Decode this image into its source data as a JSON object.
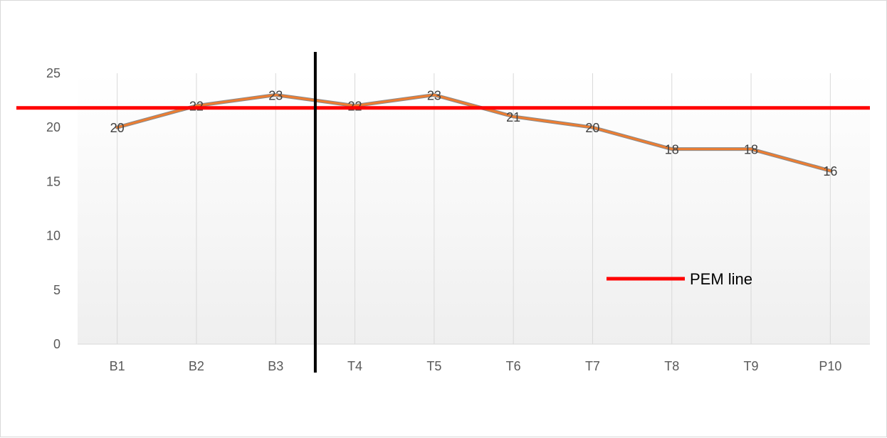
{
  "chart_data": {
    "type": "line",
    "categories": [
      "B1",
      "B2",
      "B3",
      "T4",
      "T5",
      "T6",
      "T7",
      "T8",
      "T9",
      "P10"
    ],
    "series": [
      {
        "values": [
          20,
          22,
          23,
          22,
          23,
          21,
          20,
          18,
          18,
          16
        ],
        "color": "#ED7D31"
      }
    ],
    "data_labels": [
      "20",
      "22",
      "23",
      "22",
      "23",
      "21",
      "20",
      "18",
      "18",
      "16"
    ],
    "ylim": [
      0,
      25
    ],
    "y_ticks": [
      0,
      5,
      10,
      15,
      20,
      25
    ],
    "y_tick_labels": [
      "0",
      "5",
      "10",
      "15",
      "20",
      "25"
    ],
    "reference_line": {
      "value": 21.8,
      "color": "#FF0000",
      "label": "PEM line"
    },
    "phase_divider": {
      "between": [
        "B3",
        "T4"
      ],
      "color": "#000000"
    },
    "vertical_gridlines": true,
    "legend": {
      "position": "right",
      "entries": [
        "PEM line"
      ]
    },
    "title": "",
    "xlabel": "",
    "ylabel": ""
  }
}
